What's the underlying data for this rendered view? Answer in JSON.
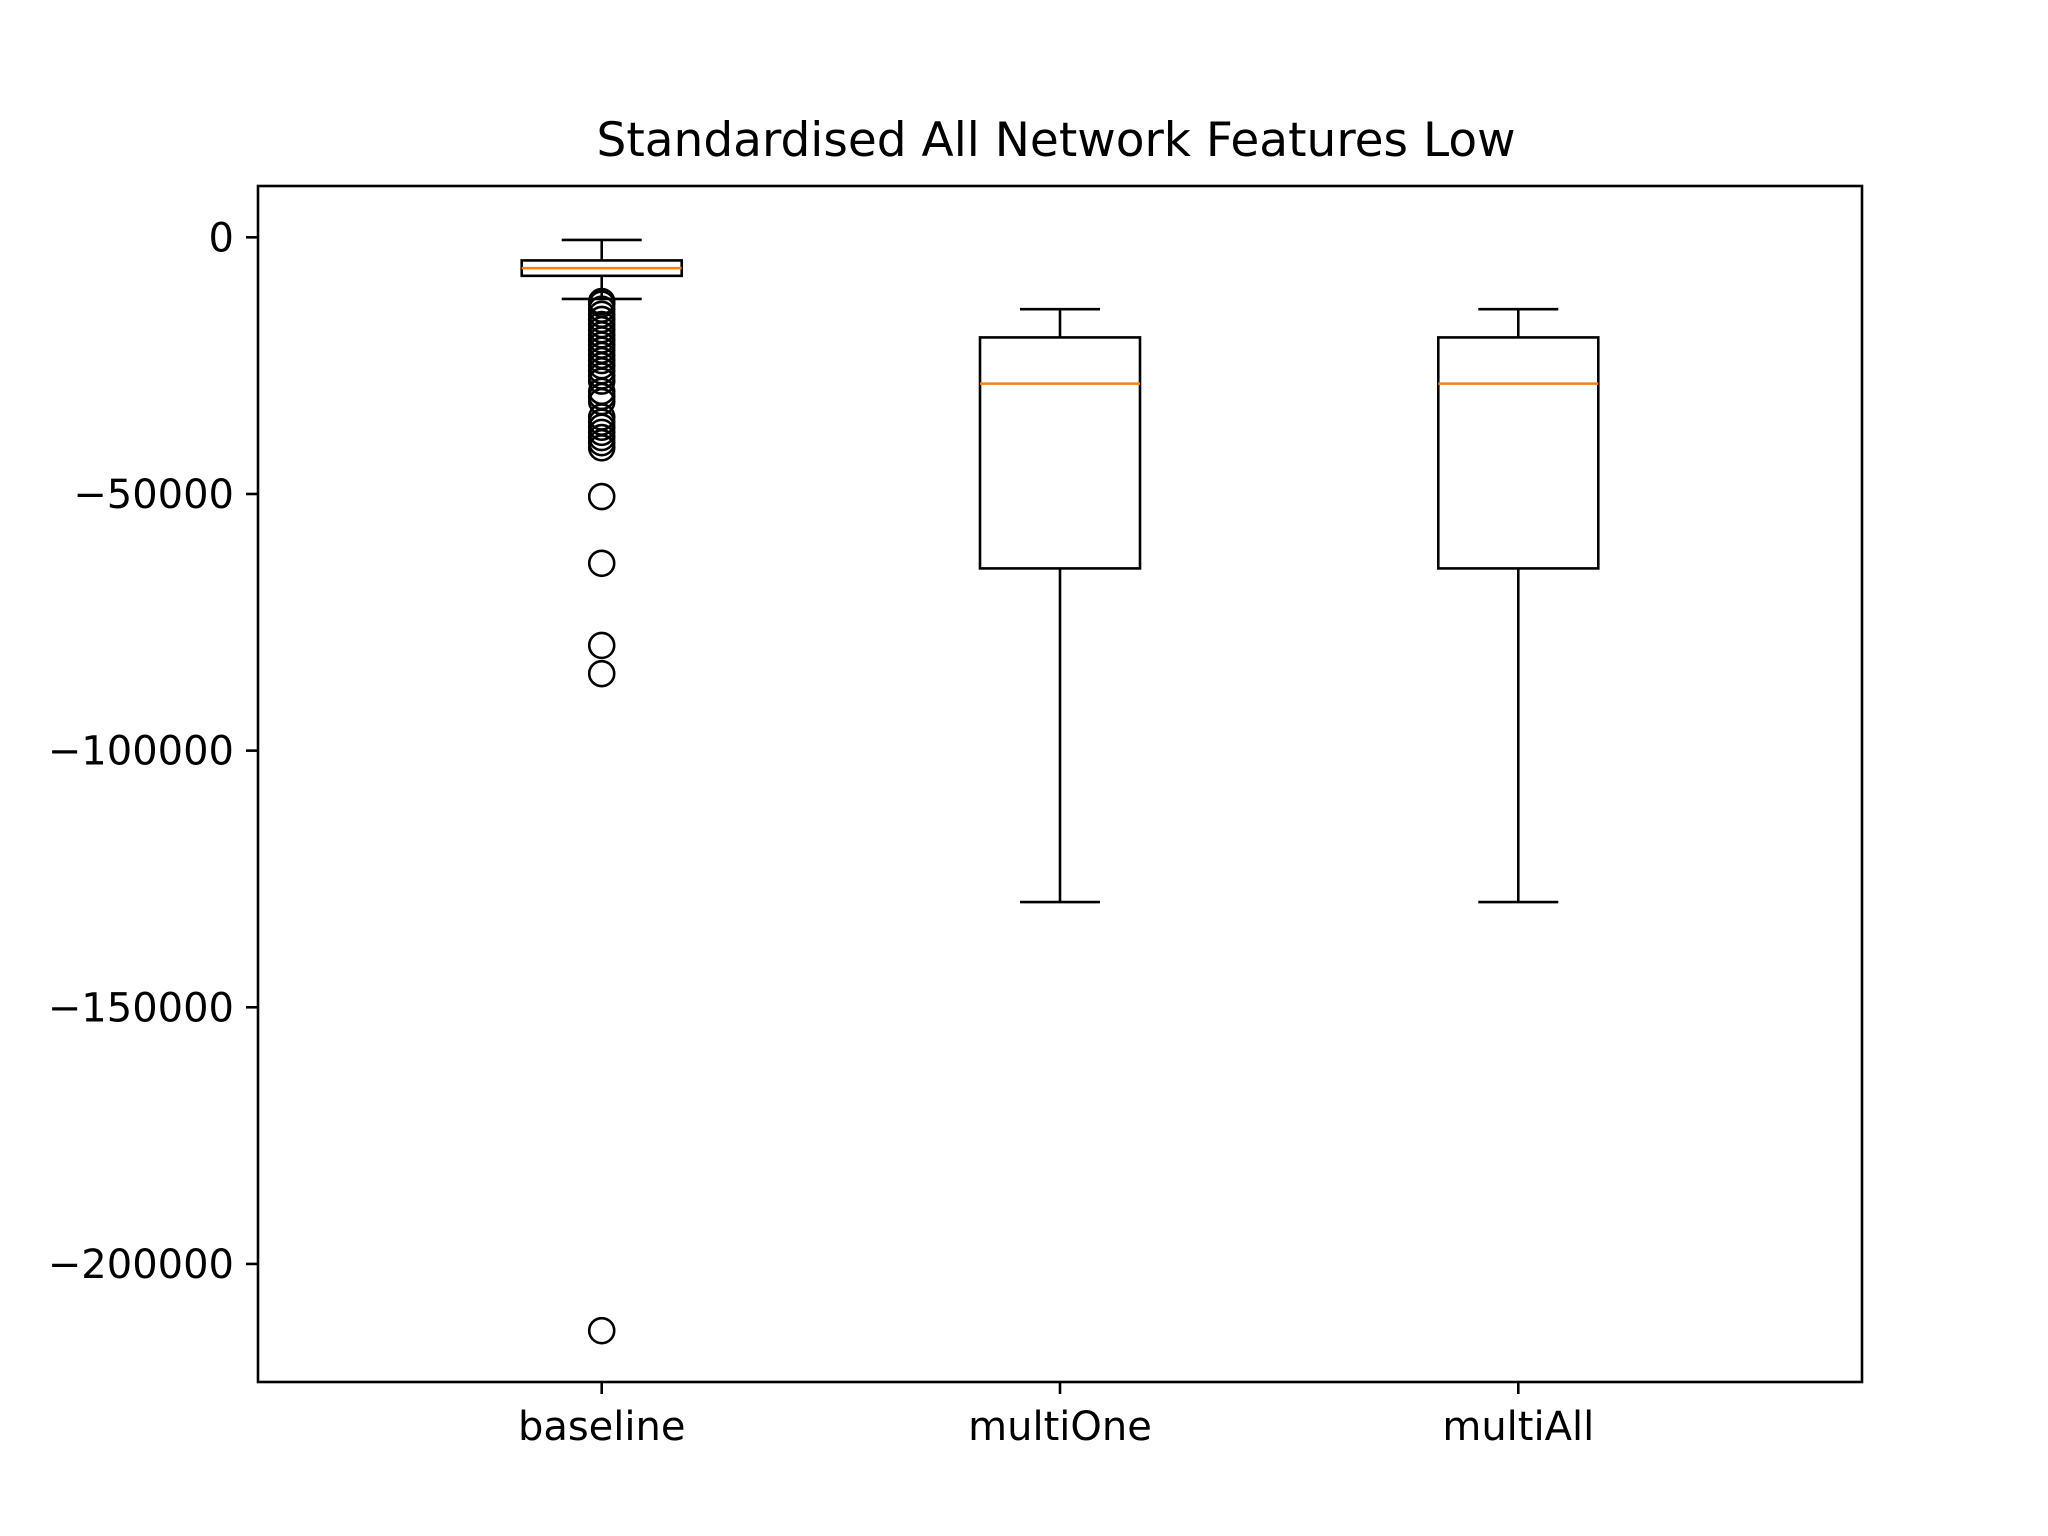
{
  "chart_data": {
    "type": "box",
    "title": "Standardised All Network Features Low",
    "xlabel": "",
    "ylabel": "",
    "categories": [
      "baseline",
      "multiOne",
      "multiAll"
    ],
    "ylim": [
      -223000,
      10000
    ],
    "yticks": [
      0,
      -50000,
      -100000,
      -150000,
      -200000
    ],
    "ytick_labels": [
      "0",
      "−50000",
      "−100000",
      "−150000",
      "−200000"
    ],
    "grid": false,
    "colors": {
      "box": "#000000",
      "median": "#ff7f0e",
      "flier": "#000000",
      "axes": "#000000"
    },
    "boxes": [
      {
        "category": "baseline",
        "whisker_high": -500,
        "q3": -4500,
        "median": -6000,
        "q1": -7500,
        "whisker_low": -12000,
        "outliers": [
          -12500,
          -13000,
          -14000,
          -15000,
          -16000,
          -17000,
          -18000,
          -19000,
          -20000,
          -21000,
          -22000,
          -23000,
          -24000,
          -25000,
          -26000,
          -27000,
          -28000,
          -30000,
          -31000,
          -32000,
          -35000,
          -36000,
          -37000,
          -38000,
          -39000,
          -40000,
          -41000,
          -50500,
          -63500,
          -79500,
          -85000,
          -213000
        ]
      },
      {
        "category": "multiOne",
        "whisker_high": -14000,
        "q3": -19500,
        "median": -28500,
        "q1": -64500,
        "whisker_low": -129500,
        "outliers": []
      },
      {
        "category": "multiAll",
        "whisker_high": -14000,
        "q3": -19500,
        "median": -28500,
        "q1": -64500,
        "whisker_low": -129500,
        "outliers": []
      }
    ]
  }
}
